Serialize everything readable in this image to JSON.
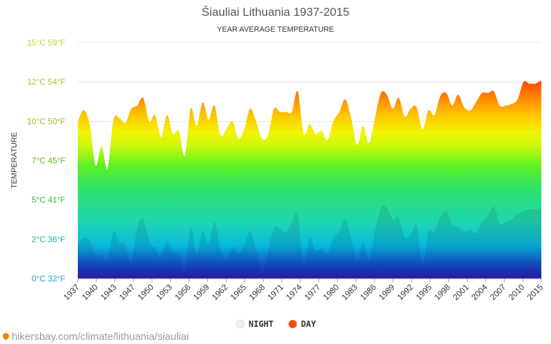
{
  "chart_data": {
    "type": "area",
    "title": "Šiauliai Lithuania 1937-2015",
    "subtitle": "YEAR AVERAGE TEMPERATURE",
    "ylabel": "TEMPERATURE",
    "ylim": [
      0,
      15
    ],
    "yticks": [
      {
        "value": 0,
        "label": "0°C 32°F",
        "color": "#1aa3c4"
      },
      {
        "value": 2.5,
        "label": "2°C 36°F",
        "color": "#17b3a0"
      },
      {
        "value": 5,
        "label": "5°C 41°F",
        "color": "#2fbf3a"
      },
      {
        "value": 7.5,
        "label": "7°C 45°F",
        "color": "#5fb81c"
      },
      {
        "value": 10,
        "label": "10°C 50°F",
        "color": "#8cc21a"
      },
      {
        "value": 12.5,
        "label": "12°C 54°F",
        "color": "#a8c822"
      },
      {
        "value": 15,
        "label": "15°C 59°F",
        "color": "#c2d23a"
      }
    ],
    "xlim": [
      1937,
      2015
    ],
    "xtick_labels": [
      "1937",
      "1940",
      "1943",
      "1947",
      "1950",
      "1953",
      "1956",
      "1959",
      "1962",
      "1965",
      "1968",
      "1971",
      "1974",
      "1977",
      "1980",
      "1983",
      "1986",
      "1989",
      "1992",
      "1995",
      "1998",
      "2001",
      "2004",
      "2007",
      "2010",
      "2015"
    ],
    "legend": [
      {
        "name": "NIGHT",
        "color": "#eeeeee"
      },
      {
        "name": "DAY",
        "color": "#ff4a10"
      }
    ],
    "legend_position": "bottom",
    "grid": true,
    "series": [
      {
        "name": "DAY",
        "x": [
          1937,
          1938,
          1939,
          1940,
          1941,
          1942,
          1943,
          1944,
          1945,
          1946,
          1947,
          1948,
          1949,
          1950,
          1951,
          1952,
          1953,
          1954,
          1955,
          1956,
          1957,
          1958,
          1959,
          1960,
          1961,
          1962,
          1963,
          1964,
          1965,
          1966,
          1967,
          1968,
          1969,
          1970,
          1971,
          1972,
          1973,
          1974,
          1975,
          1976,
          1977,
          1978,
          1979,
          1980,
          1981,
          1982,
          1983,
          1984,
          1985,
          1986,
          1987,
          1988,
          1989,
          1990,
          1991,
          1992,
          1993,
          1994,
          1995,
          1996,
          1997,
          1998,
          1999,
          2000,
          2001,
          2002,
          2003,
          2004,
          2005,
          2006,
          2007,
          2008,
          2009,
          2010,
          2011,
          2012,
          2013,
          2014,
          2015
        ],
        "values": [
          10.0,
          10.7,
          9.8,
          7.2,
          8.4,
          7.0,
          10.1,
          10.2,
          9.9,
          10.8,
          11.0,
          11.5,
          10.0,
          10.4,
          9.0,
          10.4,
          9.2,
          9.4,
          7.8,
          10.8,
          9.7,
          11.2,
          10.1,
          11.0,
          9.1,
          9.5,
          10.0,
          8.9,
          9.5,
          10.8,
          10.0,
          8.9,
          9.1,
          10.8,
          10.6,
          10.6,
          10.6,
          11.9,
          9.2,
          9.8,
          9.2,
          9.4,
          8.8,
          10.0,
          10.6,
          11.4,
          10.2,
          8.5,
          9.7,
          8.6,
          10.2,
          11.8,
          11.7,
          10.8,
          11.5,
          10.3,
          10.8,
          10.9,
          9.5,
          10.7,
          10.4,
          11.6,
          11.8,
          11.0,
          11.7,
          10.9,
          10.7,
          11.2,
          11.8,
          11.8,
          11.9,
          11.0,
          11.0,
          11.1,
          11.4,
          12.5,
          12.4,
          12.4,
          12.6
        ]
      },
      {
        "name": "NIGHT",
        "x": [
          1937,
          1938,
          1939,
          1940,
          1941,
          1942,
          1943,
          1944,
          1945,
          1946,
          1947,
          1948,
          1949,
          1950,
          1951,
          1952,
          1953,
          1954,
          1955,
          1956,
          1957,
          1958,
          1959,
          1960,
          1961,
          1962,
          1963,
          1964,
          1965,
          1966,
          1967,
          1968,
          1969,
          1970,
          1971,
          1972,
          1973,
          1974,
          1975,
          1976,
          1977,
          1978,
          1979,
          1980,
          1981,
          1982,
          1983,
          1984,
          1985,
          1986,
          1987,
          1988,
          1989,
          1990,
          1991,
          1992,
          1993,
          1994,
          1995,
          1996,
          1997,
          1998,
          1999,
          2000,
          2001,
          2002,
          2003,
          2004,
          2005,
          2006,
          2007,
          2008,
          2009,
          2010,
          2011,
          2012,
          2013,
          2014,
          2015
        ],
        "values": [
          2.2,
          2.6,
          2.4,
          1.5,
          1.5,
          1.2,
          3.0,
          2.3,
          2.2,
          1.0,
          3.3,
          3.8,
          2.4,
          1.9,
          1.4,
          2.4,
          1.7,
          1.6,
          0.5,
          3.3,
          1.6,
          3.0,
          2.2,
          3.6,
          1.9,
          1.2,
          2.0,
          1.6,
          2.1,
          3.0,
          1.8,
          0.3,
          1.8,
          3.2,
          3.2,
          2.9,
          3.6,
          4.1,
          0.9,
          2.6,
          1.8,
          1.9,
          1.6,
          2.6,
          3.0,
          3.8,
          2.6,
          1.2,
          2.3,
          1.1,
          3.0,
          4.5,
          4.5,
          3.8,
          3.9,
          2.6,
          2.8,
          3.4,
          0.9,
          3.0,
          3.0,
          3.9,
          4.3,
          3.4,
          3.3,
          3.0,
          3.1,
          2.9,
          3.6,
          4.0,
          4.6,
          3.5,
          3.6,
          3.8,
          4.1,
          4.3,
          4.4,
          4.4,
          4.5
        ]
      }
    ]
  },
  "footer": {
    "source_text": "hikersbay.com/climate/lithuania/siauliai"
  }
}
